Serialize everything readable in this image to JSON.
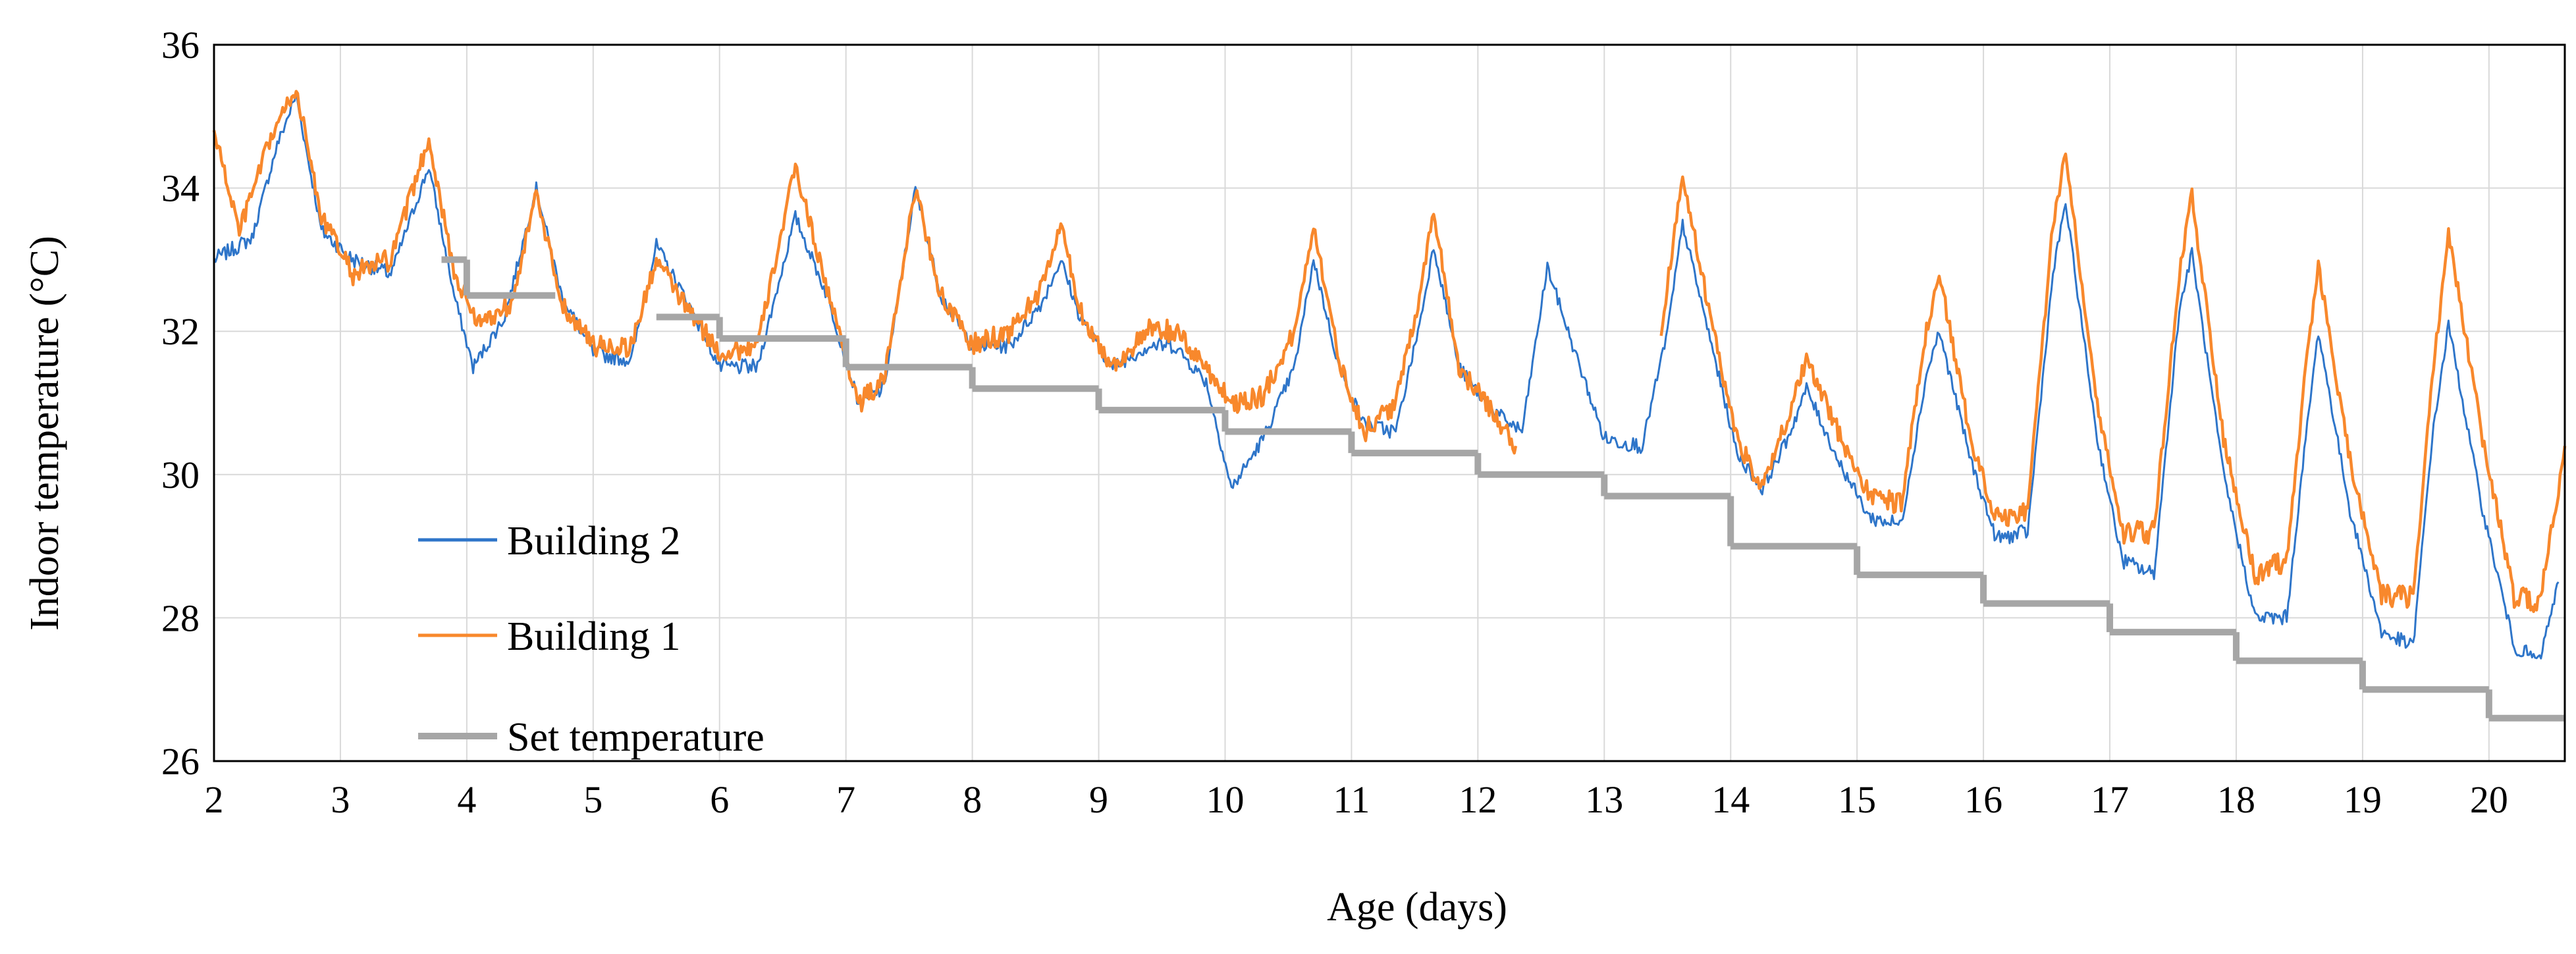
{
  "chart_data": {
    "type": "line",
    "xlabel": "Age (days)",
    "ylabel": "Indoor temperature (°C)",
    "xlim": [
      2,
      20.6
    ],
    "ylim": [
      26,
      36
    ],
    "x_ticks": [
      "2",
      "3",
      "4",
      "5",
      "6",
      "7",
      "8",
      "9",
      "10",
      "11",
      "12",
      "13",
      "14",
      "15",
      "16",
      "17",
      "18",
      "19",
      "20"
    ],
    "y_ticks": [
      "26",
      "28",
      "30",
      "32",
      "34",
      "36"
    ],
    "grid": true,
    "legend_position": "lower-left",
    "series": [
      {
        "name": "Building 2",
        "color": "#2E75C9",
        "style": "thin-noisy",
        "points": [
          [
            2.0,
            33.0
          ],
          [
            2.3,
            33.3
          ],
          [
            2.5,
            34.6
          ],
          [
            2.65,
            35.3
          ],
          [
            2.85,
            33.4
          ],
          [
            3.1,
            33.0
          ],
          [
            3.4,
            32.8
          ],
          [
            3.7,
            34.3
          ],
          [
            3.9,
            32.5
          ],
          [
            4.05,
            31.5
          ],
          [
            4.3,
            32.2
          ],
          [
            4.55,
            34.0
          ],
          [
            4.75,
            32.5
          ],
          [
            5.0,
            31.7
          ],
          [
            5.3,
            31.6
          ],
          [
            5.5,
            33.2
          ],
          [
            5.75,
            32.4
          ],
          [
            6.0,
            31.5
          ],
          [
            6.3,
            31.5
          ],
          [
            6.6,
            33.6
          ],
          [
            6.85,
            32.5
          ],
          [
            7.1,
            31.0
          ],
          [
            7.3,
            31.2
          ],
          [
            7.55,
            34.0
          ],
          [
            7.75,
            32.5
          ],
          [
            8.0,
            31.8
          ],
          [
            8.3,
            31.8
          ],
          [
            8.55,
            32.4
          ],
          [
            8.7,
            33.0
          ],
          [
            8.85,
            32.2
          ],
          [
            9.1,
            31.5
          ],
          [
            9.4,
            31.8
          ],
          [
            9.6,
            31.8
          ],
          [
            9.85,
            31.3
          ],
          [
            10.05,
            29.8
          ],
          [
            10.3,
            30.5
          ],
          [
            10.55,
            31.5
          ],
          [
            10.7,
            33.0
          ],
          [
            10.9,
            31.5
          ],
          [
            11.1,
            30.7
          ],
          [
            11.35,
            30.6
          ],
          [
            11.55,
            32.2
          ],
          [
            11.65,
            33.2
          ],
          [
            11.85,
            31.5
          ],
          [
            12.1,
            30.9
          ],
          [
            12.35,
            30.6
          ],
          [
            12.55,
            32.9
          ],
          [
            12.75,
            31.8
          ],
          [
            13.0,
            30.5
          ],
          [
            13.3,
            30.4
          ],
          [
            13.5,
            32.0
          ],
          [
            13.62,
            33.5
          ],
          [
            13.85,
            31.8
          ],
          [
            14.05,
            30.3
          ],
          [
            14.25,
            29.8
          ],
          [
            14.45,
            30.5
          ],
          [
            14.6,
            31.2
          ],
          [
            14.85,
            30.2
          ],
          [
            15.1,
            29.4
          ],
          [
            15.35,
            29.3
          ],
          [
            15.55,
            31.4
          ],
          [
            15.65,
            32.0
          ],
          [
            15.9,
            30.2
          ],
          [
            16.1,
            29.1
          ],
          [
            16.35,
            29.2
          ],
          [
            16.55,
            32.8
          ],
          [
            16.65,
            33.8
          ],
          [
            16.9,
            30.5
          ],
          [
            17.1,
            28.8
          ],
          [
            17.35,
            28.6
          ],
          [
            17.55,
            32.3
          ],
          [
            17.65,
            33.1
          ],
          [
            17.9,
            30.0
          ],
          [
            18.15,
            28.0
          ],
          [
            18.4,
            28.0
          ],
          [
            18.55,
            30.5
          ],
          [
            18.65,
            32.0
          ],
          [
            18.9,
            29.5
          ],
          [
            19.15,
            27.8
          ],
          [
            19.4,
            27.6
          ],
          [
            19.55,
            30.5
          ],
          [
            19.68,
            32.1
          ],
          [
            19.95,
            29.5
          ],
          [
            20.2,
            27.6
          ],
          [
            20.4,
            27.4
          ],
          [
            20.55,
            28.5
          ]
        ]
      },
      {
        "name": "Building 1",
        "color": "#F8882C",
        "style": "thick-noisy",
        "points": [
          [
            2.0,
            34.8
          ],
          [
            2.2,
            33.4
          ],
          [
            2.45,
            34.7
          ],
          [
            2.65,
            35.4
          ],
          [
            2.85,
            33.6
          ],
          [
            3.1,
            32.8
          ],
          [
            3.4,
            33.0
          ],
          [
            3.7,
            34.7
          ],
          [
            3.9,
            32.8
          ],
          [
            4.1,
            32.1
          ],
          [
            4.35,
            32.4
          ],
          [
            4.55,
            33.9
          ],
          [
            4.75,
            32.4
          ],
          [
            5.0,
            31.8
          ],
          [
            5.3,
            31.8
          ],
          [
            5.5,
            33.0
          ],
          [
            5.75,
            32.3
          ],
          [
            6.0,
            31.7
          ],
          [
            6.3,
            31.8
          ],
          [
            6.6,
            34.3
          ],
          [
            6.85,
            32.6
          ],
          [
            7.1,
            31.0
          ],
          [
            7.3,
            31.3
          ],
          [
            7.55,
            34.0
          ],
          [
            7.75,
            32.5
          ],
          [
            8.0,
            31.8
          ],
          [
            8.3,
            32.0
          ],
          [
            8.55,
            32.6
          ],
          [
            8.7,
            33.5
          ],
          [
            8.85,
            32.3
          ],
          [
            9.1,
            31.5
          ],
          [
            9.4,
            32.0
          ],
          [
            9.6,
            32.0
          ],
          [
            9.85,
            31.5
          ],
          [
            10.05,
            31.0
          ],
          [
            10.3,
            31.1
          ],
          [
            10.55,
            32.0
          ],
          [
            10.7,
            33.5
          ],
          [
            10.9,
            31.6
          ],
          [
            11.1,
            30.6
          ],
          [
            11.35,
            31.0
          ],
          [
            11.55,
            32.6
          ],
          [
            11.65,
            33.7
          ],
          [
            11.85,
            31.5
          ],
          [
            12.1,
            30.9
          ],
          [
            12.3,
            30.4
          ],
          [
            13.45,
            32.0
          ],
          [
            13.62,
            34.2
          ],
          [
            13.85,
            32.1
          ],
          [
            14.05,
            30.5
          ],
          [
            14.25,
            29.8
          ],
          [
            14.45,
            30.8
          ],
          [
            14.6,
            31.6
          ],
          [
            14.85,
            30.6
          ],
          [
            15.1,
            29.7
          ],
          [
            15.35,
            29.6
          ],
          [
            15.55,
            32.0
          ],
          [
            15.65,
            32.8
          ],
          [
            15.9,
            30.5
          ],
          [
            16.1,
            29.4
          ],
          [
            16.35,
            29.5
          ],
          [
            16.55,
            33.5
          ],
          [
            16.65,
            34.5
          ],
          [
            16.9,
            31.0
          ],
          [
            17.1,
            29.2
          ],
          [
            17.35,
            29.2
          ],
          [
            17.55,
            32.8
          ],
          [
            17.65,
            33.9
          ],
          [
            17.9,
            30.5
          ],
          [
            18.15,
            28.6
          ],
          [
            18.4,
            28.8
          ],
          [
            18.55,
            31.5
          ],
          [
            18.65,
            32.9
          ],
          [
            18.9,
            30.2
          ],
          [
            19.15,
            28.3
          ],
          [
            19.4,
            28.3
          ],
          [
            19.55,
            31.3
          ],
          [
            19.68,
            33.4
          ],
          [
            19.95,
            30.5
          ],
          [
            20.2,
            28.3
          ],
          [
            20.4,
            28.2
          ],
          [
            20.55,
            29.8
          ],
          [
            20.6,
            30.4
          ]
        ]
      },
      {
        "name": "Set temperature",
        "color": "#A6A6A6",
        "style": "step",
        "segments": [
          {
            "x0": 3.8,
            "x1": 4.0,
            "y": 33.0
          },
          {
            "x0": 4.0,
            "x1": 4.7,
            "y": 32.5
          },
          {
            "x0": 5.5,
            "x1": 6.0,
            "y": 32.2
          },
          {
            "x0": 6.0,
            "x1": 7.0,
            "y": 31.9
          },
          {
            "x0": 7.0,
            "x1": 8.0,
            "y": 31.5
          },
          {
            "x0": 8.0,
            "x1": 9.0,
            "y": 31.2
          },
          {
            "x0": 9.0,
            "x1": 10.0,
            "y": 30.9
          },
          {
            "x0": 10.0,
            "x1": 11.0,
            "y": 30.6
          },
          {
            "x0": 11.0,
            "x1": 12.0,
            "y": 30.3
          },
          {
            "x0": 12.0,
            "x1": 13.0,
            "y": 30.0
          },
          {
            "x0": 13.0,
            "x1": 14.0,
            "y": 29.7
          },
          {
            "x0": 14.0,
            "x1": 15.0,
            "y": 29.0
          },
          {
            "x0": 15.0,
            "x1": 16.0,
            "y": 28.6
          },
          {
            "x0": 16.0,
            "x1": 17.0,
            "y": 28.2
          },
          {
            "x0": 17.0,
            "x1": 18.0,
            "y": 27.8
          },
          {
            "x0": 18.0,
            "x1": 19.0,
            "y": 27.4
          },
          {
            "x0": 19.0,
            "x1": 20.0,
            "y": 27.0
          },
          {
            "x0": 20.0,
            "x1": 20.6,
            "y": 26.6
          }
        ]
      }
    ]
  }
}
